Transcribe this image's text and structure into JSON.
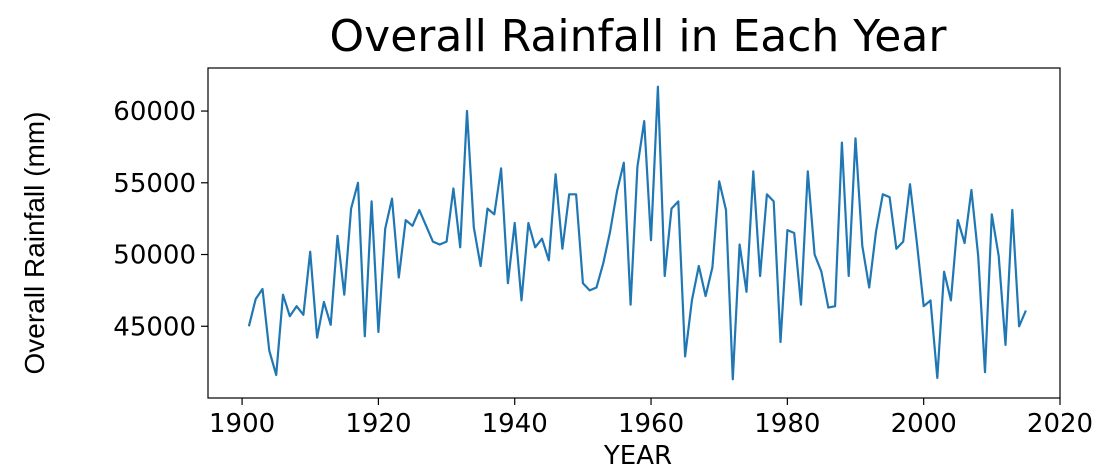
{
  "chart_data": {
    "type": "line",
    "title": "Overall Rainfall in Each Year",
    "xlabel": "YEAR",
    "ylabel": "Overall Rainfall (mm)",
    "xlim": [
      1895,
      2020
    ],
    "ylim": [
      40000,
      63000
    ],
    "xticks": [
      1900,
      1920,
      1940,
      1960,
      1980,
      2000,
      2020
    ],
    "yticks": [
      45000,
      50000,
      55000,
      60000
    ],
    "grid": false,
    "color": "#1f77b4",
    "series": [
      {
        "x": [
          1901,
          1902,
          1903,
          1904,
          1905,
          1906,
          1907,
          1908,
          1909,
          1910,
          1911,
          1912,
          1913,
          1914,
          1915,
          1916,
          1917,
          1918,
          1919,
          1920,
          1921,
          1922,
          1923,
          1924,
          1925,
          1926,
          1927,
          1928,
          1929,
          1930,
          1931,
          1932,
          1933,
          1934,
          1935,
          1936,
          1937,
          1938,
          1939,
          1940,
          1941,
          1942,
          1943,
          1944,
          1945,
          1946,
          1947,
          1948,
          1949,
          1950,
          1951,
          1952,
          1953,
          1954,
          1955,
          1956,
          1957,
          1958,
          1959,
          1960,
          1961,
          1962,
          1963,
          1964,
          1965,
          1966,
          1967,
          1968,
          1969,
          1970,
          1971,
          1972,
          1973,
          1974,
          1975,
          1976,
          1977,
          1978,
          1979,
          1980,
          1981,
          1982,
          1983,
          1984,
          1985,
          1986,
          1987,
          1988,
          1989,
          1990,
          1991,
          1992,
          1993,
          1994,
          1995,
          1996,
          1997,
          1998,
          1999,
          2000,
          2001,
          2002,
          2003,
          2004,
          2005,
          2006,
          2007,
          2008,
          2009,
          2010,
          2011,
          2012,
          2013,
          2014,
          2015
        ],
        "y": [
          45000,
          46900,
          47600,
          43300,
          41600,
          47200,
          45700,
          46400,
          45800,
          50200,
          44200,
          46700,
          45100,
          51300,
          47200,
          53200,
          55000,
          44300,
          53700,
          44600,
          51800,
          53900,
          48400,
          52400,
          52000,
          53100,
          52000,
          50900,
          50700,
          50900,
          54600,
          50500,
          60000,
          51900,
          49200,
          53200,
          52800,
          56000,
          48000,
          52200,
          46800,
          52200,
          50500,
          51100,
          49600,
          55600,
          50400,
          54200,
          54200,
          48000,
          47500,
          47700,
          49400,
          51600,
          54400,
          56400,
          46500,
          56100,
          59300,
          51000,
          61700,
          48500,
          53200,
          53700,
          42900,
          46800,
          49200,
          47100,
          49100,
          55100,
          53100,
          41300,
          50700,
          47400,
          55800,
          48500,
          54200,
          53700,
          43900,
          51700,
          51500,
          46500,
          55800,
          50000,
          48800,
          46300,
          46400,
          57800,
          48500,
          58100,
          50600,
          47700,
          51600,
          54200,
          54000,
          50400,
          50900,
          54900,
          50800,
          46400,
          46800,
          41400,
          48800,
          46800,
          52400,
          50800,
          54500,
          49900,
          41800,
          52800,
          49900,
          43700,
          53100,
          45000,
          46100
        ]
      }
    ]
  }
}
